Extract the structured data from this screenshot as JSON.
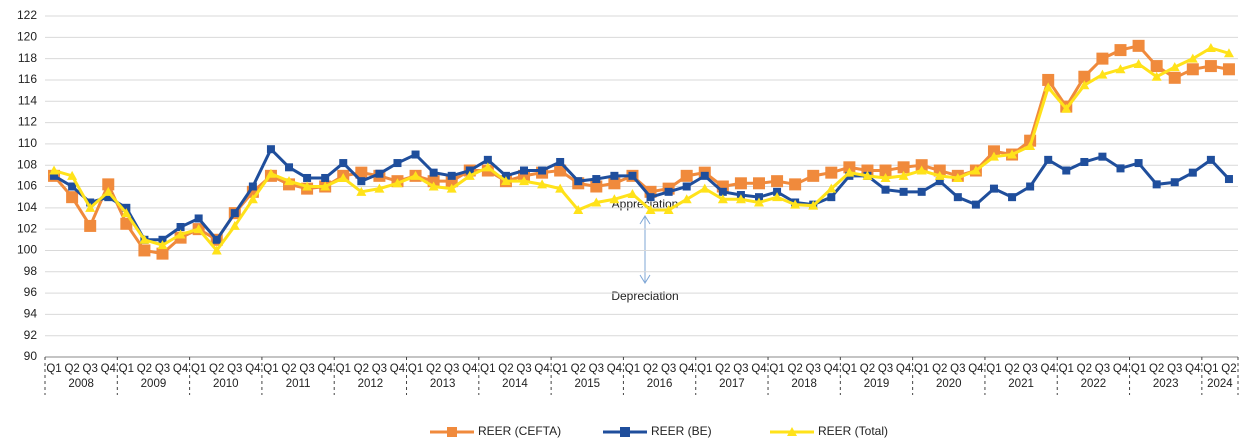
{
  "chart_data": {
    "type": "line",
    "categories": [
      "Q1",
      "Q2",
      "Q3",
      "Q4",
      "Q1",
      "Q2",
      "Q3",
      "Q4",
      "Q1",
      "Q2",
      "Q3",
      "Q4",
      "Q1",
      "Q2",
      "Q3",
      "Q4",
      "Q1",
      "Q2",
      "Q3",
      "Q4",
      "Q1",
      "Q2",
      "Q3",
      "Q4",
      "Q1",
      "Q2",
      "Q3",
      "Q4",
      "Q1",
      "Q2",
      "Q3",
      "Q4",
      "Q1",
      "Q2",
      "Q3",
      "Q4",
      "Q1",
      "Q2",
      "Q3",
      "Q4",
      "Q1",
      "Q2",
      "Q3",
      "Q4",
      "Q1",
      "Q2",
      "Q3",
      "Q4",
      "Q1",
      "Q2",
      "Q3",
      "Q4",
      "Q1",
      "Q2",
      "Q3",
      "Q4",
      "Q1",
      "Q2",
      "Q3",
      "Q4",
      "Q1",
      "Q2",
      "Q3",
      "Q4",
      "Q1",
      "Q2"
    ],
    "years": [
      "2008",
      "2009",
      "2010",
      "2011",
      "2012",
      "2013",
      "2014",
      "2015",
      "2016",
      "2017",
      "2018",
      "2019",
      "2020",
      "2021",
      "2022",
      "2023",
      "2024"
    ],
    "series": [
      {
        "name": "REER (CEFTA)",
        "color": "#f08a3c",
        "marker": "square",
        "values": [
          107,
          105,
          102.3,
          106.2,
          102.5,
          100,
          99.7,
          101.2,
          102,
          101,
          103.5,
          105.5,
          107,
          106.2,
          105.8,
          106,
          107,
          107.3,
          107,
          106.5,
          107,
          106.5,
          106.5,
          107.5,
          107.5,
          106.5,
          107,
          107.3,
          107.5,
          106.3,
          106,
          106.3,
          107,
          105.5,
          105.8,
          107,
          107.3,
          106,
          106.3,
          106.3,
          106.5,
          106.2,
          107,
          107.3,
          107.8,
          107.5,
          107.5,
          107.8,
          108,
          107.5,
          107,
          107.5,
          109.3,
          109,
          110.3,
          116,
          113.5,
          116.3,
          118,
          118.8,
          119.2,
          117.3,
          116.2,
          117,
          117.3,
          117
        ]
      },
      {
        "name": "REER (BE)",
        "color": "#1f4e9c",
        "marker": "square",
        "values": [
          107,
          106,
          104.5,
          105,
          104,
          101,
          101,
          102.2,
          103,
          101,
          103.5,
          106,
          109.5,
          107.8,
          106.8,
          106.8,
          108.2,
          106.5,
          107.2,
          108.2,
          109,
          107.3,
          107,
          107.5,
          108.5,
          107,
          107.5,
          107.5,
          108.3,
          106.5,
          106.7,
          107,
          107,
          105,
          105.5,
          106,
          107,
          105.5,
          105.2,
          105,
          105.5,
          104.5,
          104.3,
          105,
          107,
          107,
          105.7,
          105.5,
          105.5,
          106.5,
          105,
          104.3,
          105.8,
          105,
          106,
          108.5,
          107.5,
          108.3,
          108.8,
          107.7,
          108.2,
          106.2,
          106.4,
          107.3,
          108.5,
          106.7
        ]
      },
      {
        "name": "REER (Total)",
        "color": "#ffe21a",
        "marker": "triangle",
        "values": [
          107.5,
          107,
          104,
          105.5,
          103.5,
          101,
          100.5,
          101.5,
          102,
          100,
          102.3,
          104.8,
          107.2,
          106.5,
          106,
          106,
          106.8,
          105.5,
          105.8,
          106.3,
          107,
          106,
          105.8,
          107,
          107.8,
          106.5,
          106.5,
          106.2,
          105.8,
          103.8,
          104.5,
          104.8,
          105.3,
          103.8,
          103.8,
          104.8,
          105.8,
          104.8,
          104.8,
          104.5,
          105,
          104.3,
          104.2,
          105.8,
          107.3,
          107,
          106.8,
          107,
          107.5,
          107,
          106.8,
          107.5,
          108.8,
          109,
          109.8,
          115.3,
          113.3,
          115.5,
          116.5,
          117,
          117.5,
          116.3,
          117.2,
          118,
          119,
          118.5
        ]
      }
    ],
    "annotations": [
      "Appreciation",
      "Depreciation"
    ],
    "ylim": [
      90,
      122
    ],
    "yticks": [
      90,
      92,
      94,
      96,
      98,
      100,
      102,
      104,
      106,
      108,
      110,
      112,
      114,
      116,
      118,
      120,
      122
    ],
    "grid": true,
    "legend": "bottom"
  }
}
